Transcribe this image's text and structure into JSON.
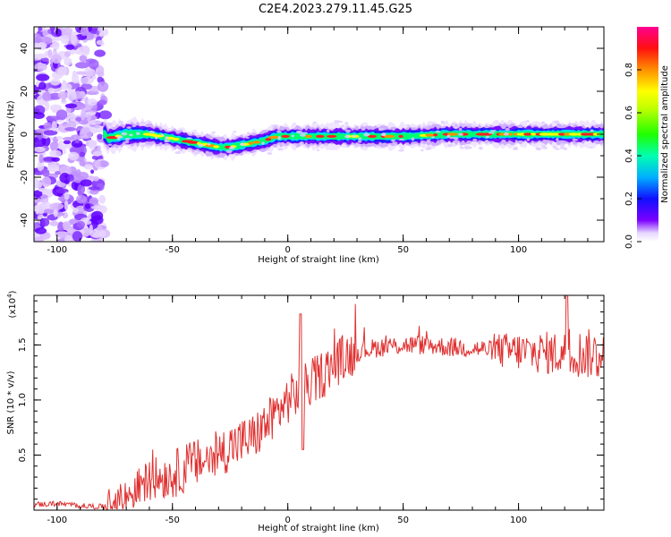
{
  "figure_title": "C2E4.2023.279.11.45.G25",
  "chart_data": [
    {
      "type": "heatmap",
      "title": "C2E4.2023.279.11.45.G25",
      "xlabel": "Height of straight line (km)",
      "ylabel": "Frequency (Hz)",
      "xlim": [
        -110,
        137
      ],
      "ylim": [
        -50,
        50
      ],
      "xticks": [
        -100,
        -50,
        0,
        50,
        100
      ],
      "yticks": [
        40,
        20,
        0,
        -20,
        -40
      ],
      "colorbar": {
        "label": "Normalized spectral amplitude",
        "range": [
          0.0,
          1.0
        ],
        "ticks": [
          "0.0",
          "0.2",
          "0.4",
          "0.6",
          "0.8"
        ],
        "colors": [
          "#d8b8ff",
          "#7000ff",
          "#0040ff",
          "#00e0ff",
          "#00ff40",
          "#ffff00",
          "#ff8000",
          "#ff0000",
          "#ff0080"
        ]
      },
      "ridge": {
        "description_points_x": [
          -78,
          -70,
          -60,
          -50,
          -40,
          -35,
          -30,
          -25,
          -20,
          -15,
          -10,
          -5,
          0,
          10,
          20,
          30,
          50,
          70,
          90,
          110,
          137
        ],
        "frequency_hz": [
          -2,
          0,
          0,
          -2,
          -4,
          -5,
          -6,
          -6,
          -5,
          -4,
          -3,
          -1,
          -1,
          -1,
          -1,
          -1,
          -1,
          0,
          0,
          0,
          0
        ]
      },
      "noise_region_x": [
        -110,
        -78
      ]
    },
    {
      "type": "line",
      "xlabel": "Height of straight line (km)",
      "ylabel": "SNR (10 * v/v)",
      "yscale_label": "(x10",
      "yscale_exp": "4",
      "yscale_close": ")",
      "xlim": [
        -110,
        137
      ],
      "ylim": [
        0,
        1.95
      ],
      "xticks": [
        -100,
        -50,
        0,
        50,
        100
      ],
      "yticks": [
        "0.5",
        "1.0",
        "1.5"
      ],
      "line_color": "#e03030",
      "series": [
        {
          "x": [
            -110,
            -100,
            -90,
            -80,
            -75,
            -70,
            -65,
            -60,
            -55,
            -50,
            -45,
            -40,
            -35,
            -30,
            -25,
            -20,
            -15,
            -10,
            -5,
            0,
            5,
            10,
            15,
            20,
            25,
            30,
            40,
            50,
            60,
            70,
            80,
            90,
            100,
            110,
            120,
            130,
            137
          ],
          "values": [
            0.05,
            0.06,
            0.04,
            0.03,
            0.06,
            0.12,
            0.2,
            0.28,
            0.3,
            0.32,
            0.38,
            0.42,
            0.46,
            0.5,
            0.58,
            0.62,
            0.66,
            0.76,
            0.88,
            1.0,
            1.08,
            1.15,
            1.24,
            1.32,
            1.4,
            1.44,
            1.48,
            1.5,
            1.5,
            1.48,
            1.47,
            1.45,
            1.44,
            1.43,
            1.42,
            1.42,
            1.4
          ]
        }
      ]
    }
  ]
}
